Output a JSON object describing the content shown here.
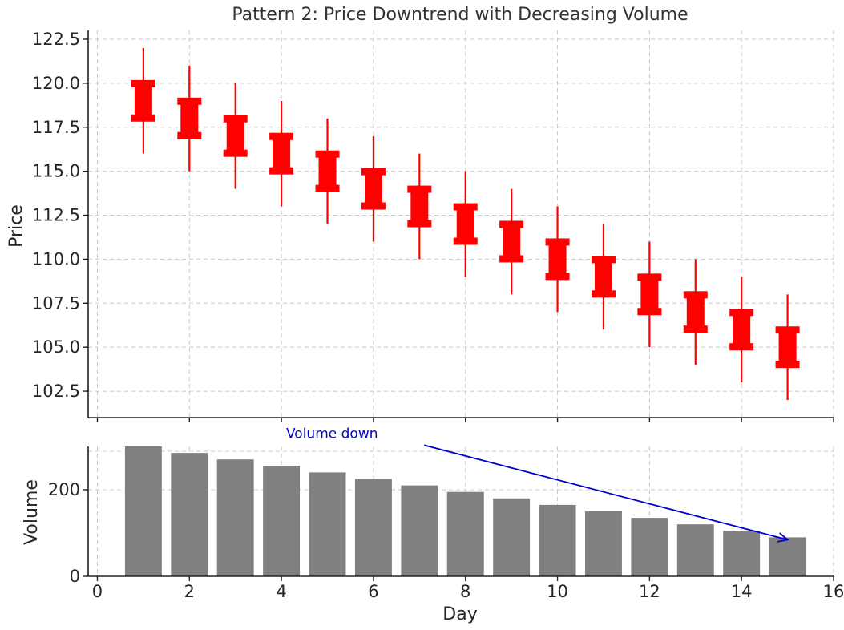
{
  "chart_data": [
    {
      "type": "candlestick",
      "title": "Pattern 2: Price Downtrend with Decreasing Volume",
      "xlabel": "",
      "ylabel": "Price",
      "ylim": [
        101.0,
        123.0
      ],
      "yticks": [
        102.5,
        105.0,
        107.5,
        110.0,
        112.5,
        115.0,
        117.5,
        120.0,
        122.5
      ],
      "ytick_labels": [
        "102.5",
        "105.0",
        "107.5",
        "110.0",
        "112.5",
        "115.0",
        "117.5",
        "120.0",
        "122.5"
      ],
      "grid": true,
      "color": "#ff0000",
      "series": [
        {
          "day": 1,
          "open": 120,
          "close": 118,
          "high": 122,
          "low": 116
        },
        {
          "day": 2,
          "open": 119,
          "close": 117,
          "high": 121,
          "low": 115
        },
        {
          "day": 3,
          "open": 118,
          "close": 116,
          "high": 120,
          "low": 114
        },
        {
          "day": 4,
          "open": 117,
          "close": 115,
          "high": 119,
          "low": 113
        },
        {
          "day": 5,
          "open": 116,
          "close": 114,
          "high": 118,
          "low": 112
        },
        {
          "day": 6,
          "open": 115,
          "close": 113,
          "high": 117,
          "low": 111
        },
        {
          "day": 7,
          "open": 114,
          "close": 112,
          "high": 116,
          "low": 110
        },
        {
          "day": 8,
          "open": 113,
          "close": 111,
          "high": 115,
          "low": 109
        },
        {
          "day": 9,
          "open": 112,
          "close": 110,
          "high": 114,
          "low": 108
        },
        {
          "day": 10,
          "open": 111,
          "close": 109,
          "high": 113,
          "low": 107
        },
        {
          "day": 11,
          "open": 110,
          "close": 108,
          "high": 112,
          "low": 106
        },
        {
          "day": 12,
          "open": 109,
          "close": 107,
          "high": 111,
          "low": 105
        },
        {
          "day": 13,
          "open": 108,
          "close": 106,
          "high": 110,
          "low": 104
        },
        {
          "day": 14,
          "open": 107,
          "close": 105,
          "high": 109,
          "low": 103
        },
        {
          "day": 15,
          "open": 106,
          "close": 104,
          "high": 108,
          "low": 102
        }
      ]
    },
    {
      "type": "bar",
      "xlabel": "Day",
      "ylabel": "Volume",
      "xlim": [
        -0.2,
        16.0
      ],
      "ylim": [
        0,
        300
      ],
      "xticks": [
        0,
        2,
        4,
        6,
        8,
        10,
        12,
        14,
        16
      ],
      "xtick_labels": [
        "0",
        "2",
        "4",
        "6",
        "8",
        "10",
        "12",
        "14",
        "16"
      ],
      "yticks": [
        0,
        200
      ],
      "ytick_labels": [
        "0",
        "200"
      ],
      "grid": true,
      "color": "#808080",
      "categories": [
        1,
        2,
        3,
        4,
        5,
        6,
        7,
        8,
        9,
        10,
        11,
        12,
        13,
        14,
        15
      ],
      "values": [
        300,
        285,
        270,
        255,
        240,
        225,
        210,
        195,
        180,
        165,
        150,
        135,
        120,
        105,
        90
      ],
      "annotation": {
        "text": "Volume down",
        "color": "#0000cc",
        "text_at": {
          "day": 7.1,
          "volume": 303
        },
        "arrow_to": {
          "day": 15.0,
          "volume": 90
        }
      }
    }
  ]
}
